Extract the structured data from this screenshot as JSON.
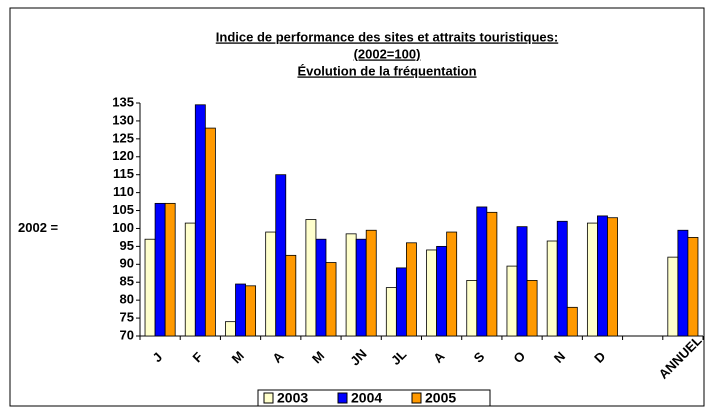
{
  "chart_data": {
    "type": "bar",
    "title": [
      "Indice de performance des sites et attraits touristiques:",
      "(2002=100)",
      "Évolution de la fréquentation"
    ],
    "y_label": "2002 =",
    "categories": [
      "J",
      "F",
      "M",
      "A",
      "M",
      "JN",
      "JL",
      "A",
      "S",
      "O",
      "N",
      "D",
      null,
      "ANNUEL"
    ],
    "series": [
      {
        "name": "2003",
        "color": "#ffffcc",
        "values": [
          97,
          101.5,
          74,
          99,
          102.5,
          98.5,
          83.5,
          94,
          85.5,
          89.5,
          96.5,
          101.5,
          null,
          92
        ]
      },
      {
        "name": "2004",
        "color": "#0000ff",
        "values": [
          107,
          134.5,
          84.5,
          115,
          97,
          97,
          89,
          95,
          106,
          100.5,
          102,
          103.5,
          null,
          99.5
        ]
      },
      {
        "name": "2005",
        "color": "#ff9900",
        "values": [
          107,
          128,
          84,
          92.5,
          90.5,
          99.5,
          96,
          99,
          104.5,
          85.5,
          78,
          103,
          null,
          97.5
        ]
      }
    ],
    "ylim": [
      70,
      135
    ],
    "yticks": [
      70,
      75,
      80,
      85,
      90,
      95,
      100,
      105,
      110,
      115,
      120,
      125,
      130,
      135
    ],
    "legend": "bottom"
  }
}
